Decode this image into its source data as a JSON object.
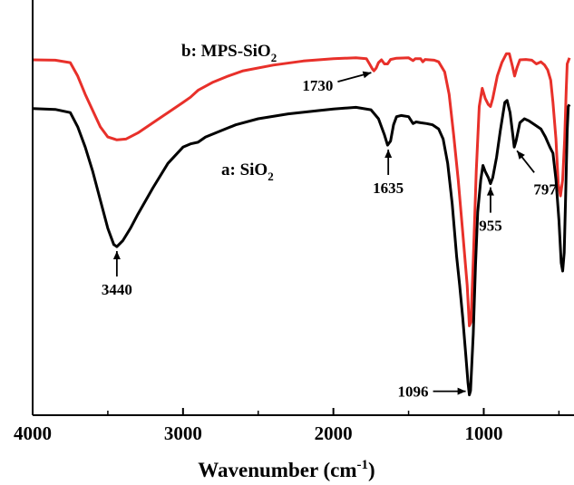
{
  "chart_data": {
    "type": "line",
    "xlabel": "Wavenumber (cm",
    "xlabel_sup": "-1",
    "xlabel_suffix": ")",
    "ylabel": "",
    "xlim": [
      4000,
      430
    ],
    "x_reversed": true,
    "y_axis_shown": false,
    "grid": false,
    "x_ticks": [
      4000,
      3000,
      2000,
      1000
    ],
    "tick_labels": [
      "4000",
      "3000",
      "2000",
      "1000"
    ],
    "ylim": [
      0,
      100
    ],
    "series": [
      {
        "name": "b: MPS-SiO",
        "name_sub": "2",
        "color": "#e8302a",
        "points": [
          [
            4000,
            87.5
          ],
          [
            3850,
            87.4
          ],
          [
            3750,
            86.8
          ],
          [
            3700,
            83.5
          ],
          [
            3650,
            79.0
          ],
          [
            3600,
            75.0
          ],
          [
            3550,
            71.0
          ],
          [
            3500,
            68.5
          ],
          [
            3440,
            67.8
          ],
          [
            3380,
            68.0
          ],
          [
            3300,
            69.5
          ],
          [
            3200,
            72.0
          ],
          [
            3100,
            74.5
          ],
          [
            3000,
            77.0
          ],
          [
            2950,
            78.3
          ],
          [
            2900,
            80.0
          ],
          [
            2800,
            82.0
          ],
          [
            2700,
            83.5
          ],
          [
            2600,
            84.8
          ],
          [
            2400,
            86.2
          ],
          [
            2200,
            87.2
          ],
          [
            2000,
            87.8
          ],
          [
            1850,
            88.0
          ],
          [
            1780,
            87.8
          ],
          [
            1760,
            86.5
          ],
          [
            1740,
            85.2
          ],
          [
            1730,
            84.8
          ],
          [
            1715,
            85.5
          ],
          [
            1700,
            86.8
          ],
          [
            1680,
            87.5
          ],
          [
            1660,
            86.5
          ],
          [
            1640,
            86.5
          ],
          [
            1620,
            87.6
          ],
          [
            1580,
            87.9
          ],
          [
            1500,
            88.0
          ],
          [
            1470,
            87.3
          ],
          [
            1455,
            87.8
          ],
          [
            1420,
            87.8
          ],
          [
            1405,
            87.0
          ],
          [
            1390,
            87.6
          ],
          [
            1330,
            87.4
          ],
          [
            1300,
            87.0
          ],
          [
            1260,
            84.5
          ],
          [
            1230,
            79.0
          ],
          [
            1200,
            69.0
          ],
          [
            1170,
            58.0
          ],
          [
            1140,
            45.0
          ],
          [
            1110,
            32.0
          ],
          [
            1096,
            22.0
          ],
          [
            1085,
            23.0
          ],
          [
            1070,
            38.0
          ],
          [
            1050,
            60.0
          ],
          [
            1030,
            76.0
          ],
          [
            1010,
            80.5
          ],
          [
            990,
            78.0
          ],
          [
            970,
            76.5
          ],
          [
            955,
            76.0
          ],
          [
            940,
            78.0
          ],
          [
            910,
            83.5
          ],
          [
            880,
            86.8
          ],
          [
            850,
            89.0
          ],
          [
            830,
            89.0
          ],
          [
            810,
            86.0
          ],
          [
            795,
            83.5
          ],
          [
            780,
            85.5
          ],
          [
            760,
            87.5
          ],
          [
            720,
            87.6
          ],
          [
            680,
            87.4
          ],
          [
            650,
            86.5
          ],
          [
            620,
            87.0
          ],
          [
            595,
            86.2
          ],
          [
            575,
            85.0
          ],
          [
            555,
            82.5
          ],
          [
            540,
            77.0
          ],
          [
            520,
            68.0
          ],
          [
            505,
            57.0
          ],
          [
            490,
            54.0
          ],
          [
            475,
            58.0
          ],
          [
            462,
            68.0
          ],
          [
            452,
            80.0
          ],
          [
            445,
            86.5
          ],
          [
            430,
            88.0
          ]
        ]
      },
      {
        "name": "a: SiO",
        "name_sub": "2",
        "color": "#000000",
        "points": [
          [
            4000,
            75.5
          ],
          [
            3850,
            75.3
          ],
          [
            3750,
            74.5
          ],
          [
            3700,
            71.0
          ],
          [
            3650,
            66.0
          ],
          [
            3600,
            60.0
          ],
          [
            3550,
            53.0
          ],
          [
            3500,
            46.0
          ],
          [
            3460,
            42.0
          ],
          [
            3440,
            41.5
          ],
          [
            3400,
            43.0
          ],
          [
            3350,
            46.0
          ],
          [
            3300,
            49.5
          ],
          [
            3200,
            56.0
          ],
          [
            3100,
            62.0
          ],
          [
            3000,
            66.0
          ],
          [
            2950,
            66.8
          ],
          [
            2900,
            67.2
          ],
          [
            2850,
            68.5
          ],
          [
            2750,
            70.0
          ],
          [
            2650,
            71.5
          ],
          [
            2500,
            73.0
          ],
          [
            2300,
            74.2
          ],
          [
            2100,
            75.0
          ],
          [
            2000,
            75.4
          ],
          [
            1850,
            75.8
          ],
          [
            1750,
            75.2
          ],
          [
            1700,
            73.0
          ],
          [
            1660,
            69.0
          ],
          [
            1640,
            66.5
          ],
          [
            1620,
            67.5
          ],
          [
            1600,
            71.5
          ],
          [
            1580,
            73.5
          ],
          [
            1550,
            73.8
          ],
          [
            1500,
            73.5
          ],
          [
            1470,
            71.8
          ],
          [
            1450,
            72.2
          ],
          [
            1420,
            72.0
          ],
          [
            1380,
            71.8
          ],
          [
            1340,
            71.5
          ],
          [
            1300,
            70.5
          ],
          [
            1270,
            68.0
          ],
          [
            1240,
            62.0
          ],
          [
            1210,
            52.0
          ],
          [
            1180,
            39.0
          ],
          [
            1160,
            32.0
          ],
          [
            1140,
            24.0
          ],
          [
            1120,
            15.0
          ],
          [
            1105,
            8.0
          ],
          [
            1096,
            5.0
          ],
          [
            1088,
            6.0
          ],
          [
            1070,
            20.0
          ],
          [
            1055,
            37.0
          ],
          [
            1040,
            50.0
          ],
          [
            1020,
            58.0
          ],
          [
            1005,
            61.5
          ],
          [
            990,
            60.0
          ],
          [
            970,
            58.5
          ],
          [
            955,
            57.0
          ],
          [
            940,
            58.5
          ],
          [
            915,
            63.5
          ],
          [
            890,
            70.0
          ],
          [
            860,
            77.0
          ],
          [
            845,
            77.5
          ],
          [
            825,
            74.5
          ],
          [
            805,
            68.5
          ],
          [
            797,
            66.0
          ],
          [
            785,
            67.5
          ],
          [
            760,
            72.0
          ],
          [
            730,
            73.0
          ],
          [
            700,
            72.5
          ],
          [
            660,
            71.5
          ],
          [
            620,
            70.5
          ],
          [
            590,
            68.5
          ],
          [
            560,
            66.0
          ],
          [
            540,
            64.5
          ],
          [
            520,
            58.0
          ],
          [
            500,
            48.0
          ],
          [
            485,
            37.5
          ],
          [
            475,
            35.5
          ],
          [
            465,
            40.0
          ],
          [
            455,
            55.0
          ],
          [
            445,
            70.0
          ],
          [
            438,
            76.0
          ],
          [
            430,
            76.5
          ]
        ]
      }
    ],
    "annotations": [
      {
        "text": "1730",
        "x": 1730,
        "y": 84.8,
        "series": 0,
        "dir": "left"
      },
      {
        "text": "1635",
        "x": 1635,
        "y": 66.3,
        "series": 1,
        "dir": "down"
      },
      {
        "text": "3440",
        "x": 3440,
        "y": 41.3,
        "series": 1,
        "dir": "down"
      },
      {
        "text": "1096",
        "x": 1096,
        "y": 5.0,
        "series": 1,
        "dir": "left"
      },
      {
        "text": "955",
        "x": 955,
        "y": 57.0,
        "series": 1,
        "dir": "down"
      },
      {
        "text": "797",
        "x": 797,
        "y": 66.0,
        "series": 1,
        "dir": "down-right"
      }
    ]
  }
}
